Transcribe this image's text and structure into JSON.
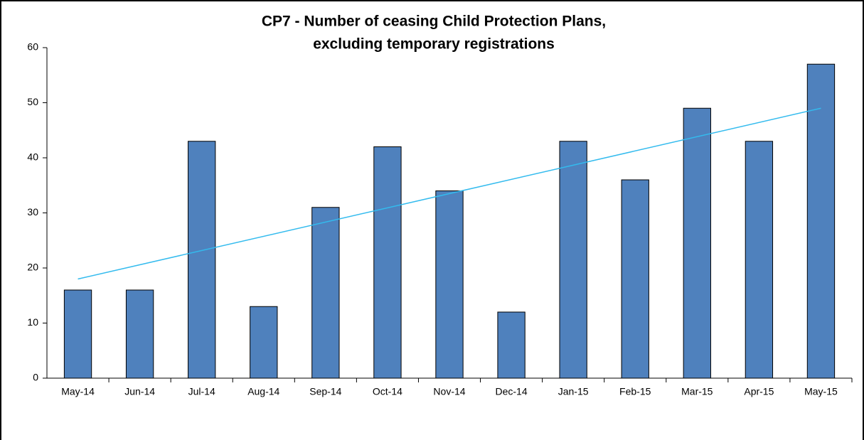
{
  "chart_data": {
    "type": "bar",
    "title": [
      "CP7 - Number of ceasing Child Protection Plans,",
      "excluding temporary registrations"
    ],
    "categories": [
      "May-14",
      "Jun-14",
      "Jul-14",
      "Aug-14",
      "Sep-14",
      "Oct-14",
      "Nov-14",
      "Dec-14",
      "Jan-15",
      "Feb-15",
      "Mar-15",
      "Apr-15",
      "May-15"
    ],
    "values": [
      16,
      16,
      43,
      13,
      31,
      42,
      34,
      12,
      43,
      36,
      49,
      43,
      57
    ],
    "color": "#4f81bd",
    "trendline": {
      "color": "#33bbee",
      "values": [
        18,
        49
      ]
    },
    "ylim": [
      0,
      60
    ],
    "yticks": [
      0,
      10,
      20,
      30,
      40,
      50,
      60
    ],
    "grid": false
  }
}
